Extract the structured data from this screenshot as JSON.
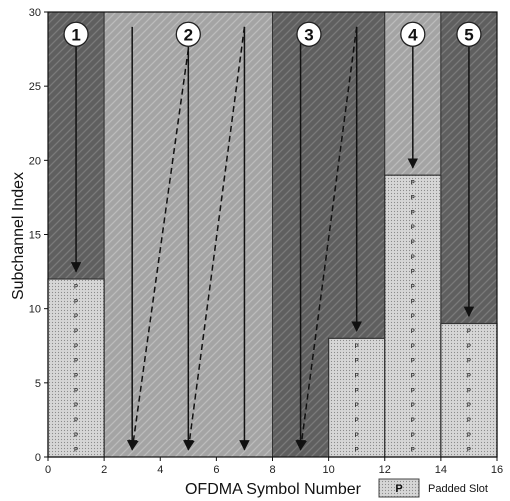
{
  "chart_data": {
    "type": "bar",
    "xlabel": "OFDMA Symbol Number",
    "ylabel": "Subchannel Index",
    "xlim": [
      0,
      16
    ],
    "ylim": [
      0,
      30
    ],
    "xticks": [
      "0",
      "2",
      "4",
      "6",
      "8",
      "10",
      "12",
      "14",
      "16"
    ],
    "yticks": [
      "0",
      "5",
      "10",
      "15",
      "20",
      "25",
      "30"
    ],
    "regions": [
      {
        "label": "1",
        "x_start": 0,
        "x_end": 2,
        "tone": "dark"
      },
      {
        "label": "2",
        "x_start": 2,
        "x_end": 8,
        "tone": "light"
      },
      {
        "label": "3",
        "x_start": 8,
        "x_end": 12,
        "tone": "dark"
      },
      {
        "label": "4",
        "x_start": 12,
        "x_end": 14,
        "tone": "light"
      },
      {
        "label": "5",
        "x_start": 14,
        "x_end": 16,
        "tone": "dark"
      }
    ],
    "padded_slots": [
      {
        "x_start": 0,
        "x_end": 2,
        "height": 12
      },
      {
        "x_start": 10,
        "x_end": 12,
        "height": 8
      },
      {
        "x_start": 12,
        "x_end": 14,
        "height": 19
      },
      {
        "x_start": 14,
        "x_end": 16,
        "height": 9
      }
    ],
    "arrows": [
      {
        "x1": 1,
        "y1": 29,
        "x2": 1,
        "y2": 12.5,
        "style": "solid"
      },
      {
        "x1": 3,
        "y1": 29,
        "x2": 3,
        "y2": 0.5,
        "style": "solid"
      },
      {
        "x1": 5,
        "y1": 29,
        "x2": 5,
        "y2": 0.5,
        "style": "solid"
      },
      {
        "x1": 7,
        "y1": 29,
        "x2": 7,
        "y2": 0.5,
        "style": "solid"
      },
      {
        "x1": 5,
        "y1": 27.5,
        "x2": 3,
        "y2": 0.5,
        "style": "dashed"
      },
      {
        "x1": 7,
        "y1": 29,
        "x2": 5,
        "y2": 0.5,
        "style": "dashed"
      },
      {
        "x1": 9,
        "y1": 29,
        "x2": 9,
        "y2": 0.5,
        "style": "solid"
      },
      {
        "x1": 11,
        "y1": 29,
        "x2": 11,
        "y2": 8.5,
        "style": "solid"
      },
      {
        "x1": 11,
        "y1": 29,
        "x2": 9,
        "y2": 0.5,
        "style": "dashed"
      },
      {
        "x1": 13,
        "y1": 29,
        "x2": 13,
        "y2": 19.5,
        "style": "solid"
      },
      {
        "x1": 15,
        "y1": 29,
        "x2": 15,
        "y2": 9.5,
        "style": "solid"
      }
    ],
    "legend": {
      "marker": "P",
      "label": "Padded Slot",
      "position": "bottom-right"
    },
    "colors": {
      "dark": "#5f5f5f",
      "light": "#a4a4a4",
      "padded": "#d6d6d6",
      "arrow": "#111111"
    }
  }
}
